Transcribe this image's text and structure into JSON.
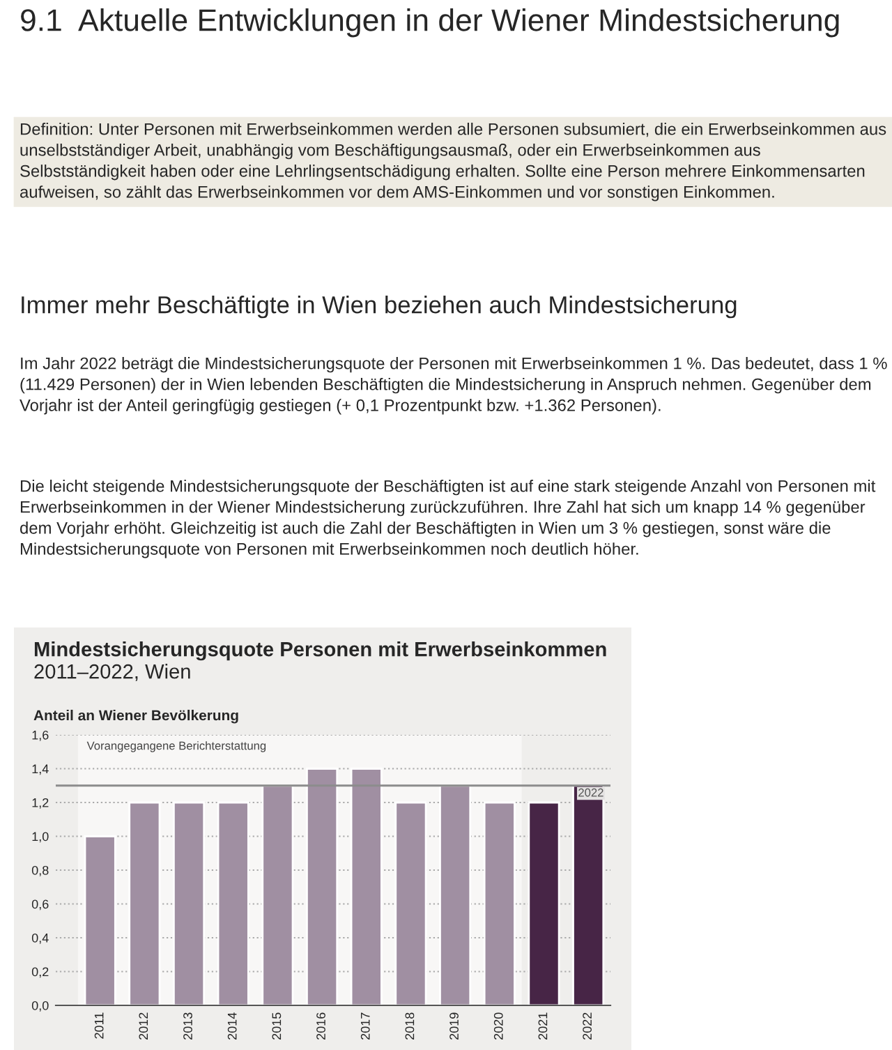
{
  "chart_data": {
    "type": "bar",
    "title": "Mindestsicherungsquote Personen mit Erwerbseinkommen",
    "subtitle": "2011–2022, Wien",
    "ylabel": "Anteil an Wiener Bevölkerung",
    "categories": [
      "2011",
      "2012",
      "2013",
      "2014",
      "2015",
      "2016",
      "2017",
      "2018",
      "2019",
      "2020",
      "2021",
      "2022"
    ],
    "values": [
      1.0,
      1.2,
      1.2,
      1.2,
      1.3,
      1.4,
      1.4,
      1.2,
      1.3,
      1.2,
      1.2,
      1.3
    ],
    "colors": [
      "#a08fa2",
      "#a08fa2",
      "#a08fa2",
      "#a08fa2",
      "#a08fa2",
      "#a08fa2",
      "#a08fa2",
      "#a08fa2",
      "#a08fa2",
      "#a08fa2",
      "#472546",
      "#472546"
    ],
    "ylim": [
      0,
      1.6
    ],
    "yticks": [
      {
        "value": 0,
        "label": "0,0"
      },
      {
        "value": 0.2,
        "label": "0,2"
      },
      {
        "value": 0.4,
        "label": "0,4"
      },
      {
        "value": 0.6,
        "label": "0,6"
      },
      {
        "value": 0.8,
        "label": "0,8"
      },
      {
        "value": 1.0,
        "label": "1,0"
      },
      {
        "value": 1.2,
        "label": "1,2"
      },
      {
        "value": 1.4,
        "label": "1,4"
      },
      {
        "value": 1.6,
        "label": "1,6"
      }
    ],
    "grid": "y",
    "ref_lines": [
      {
        "axis": "y",
        "value": 1.3,
        "color": "#8c8c8c"
      }
    ],
    "bands": [
      {
        "axis": "x",
        "from": "2011",
        "to": "2020",
        "label": "Vorangegangene Berichterstattung",
        "color": "#f8f7f6"
      }
    ],
    "annotations": [
      "9.1  Aktuelle Entwicklungen in der Wiener Mindestsicherung",
      "Definition: Unter Personen mit Erwerbseinkommen werden alle Personen subsumiert, die ein Erwerbseinkommen aus unselbstständiger Arbeit, unabhängig vom Beschäftigungsausmaß, oder ein Erwerbseinkommen aus Selbstständigkeit haben oder eine Lehrlingsentschädigung erhalten. Sollte eine Person mehrere Einkommensarten aufweisen, so zählt das Erwerbseinkommen vor dem AMS-Einkommen und vor sonstigen Einkommen.",
      "Immer mehr Beschäftigte in Wien beziehen auch Mindestsicherung",
      "Im Jahr 2022 beträgt die Mindestsicherungsquote der Personen mit Erwerbseinkommen 1 %. Das bedeutet, dass 1 % (11.429 Personen) der in Wien lebenden Beschäftigten die Mindestsicherung in Anspruch nehmen. Gegenüber dem Vorjahr ist der Anteil geringfügig gestiegen (+ 0,1 Prozentpunkt bzw. +1.362 Personen).",
      "Die leicht steigende Mindestsicherungsquote der Beschäftigten ist auf eine stark steigende Anzahl von Personen mit Erwerbseinkommen in der Wiener Mindestsicherung zurückzuführen. Ihre Zahl hat sich um knapp 14 % gegenüber dem Vorjahr erhöht. Gleichzeitig ist auch die Zahl der Beschäftigten in Wien um 3 % gestiegen, sonst wäre die Mindestsicherungsquote von Personen mit Erwerbseinkommen noch deutlich höher.",
      {
        "text": "2022",
        "x": "2022",
        "y": 1.3
      }
    ]
  }
}
